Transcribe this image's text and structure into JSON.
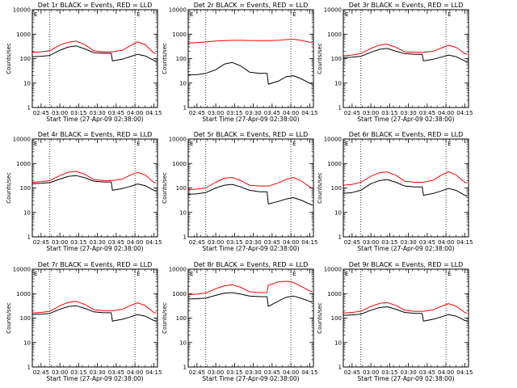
{
  "page": {
    "background": "#ffffff"
  },
  "style": {
    "events_color": "#000000",
    "lld_color": "#ff0000",
    "marker_line_style": "dotted"
  },
  "common": {
    "xlabel": "Start Time (27-Apr-09 02:38:00)",
    "ylabel": "Counts/sec",
    "xticks": [
      "02:45",
      "03:00",
      "03:15",
      "03:30",
      "03:45",
      "04:00",
      "04:15"
    ],
    "yticks": [
      "1",
      "10",
      "100",
      "1000",
      "10000"
    ],
    "marker_label": "E",
    "markers": [
      "02:52",
      "04:00"
    ]
  },
  "chart_data": [
    {
      "type": "line",
      "title": "Det 1r BLACK = Events, RED = LLD",
      "xlabel": "Start Time (27-Apr-09 02:38:00)",
      "ylabel": "Counts/sec",
      "xlim": [
        "02:38",
        "04:18"
      ],
      "ylim": [
        1,
        10000
      ],
      "yscale": "log",
      "grid": false,
      "x": [
        "02:38",
        "02:45",
        "02:52",
        "03:00",
        "03:07",
        "03:13",
        "03:20",
        "03:27",
        "03:35",
        "03:41",
        "03:42",
        "03:50",
        "03:56",
        "04:02",
        "04:08",
        "04:15",
        "04:17"
      ],
      "series": [
        {
          "name": "Events",
          "values": [
            120,
            125,
            135,
            220,
            300,
            330,
            250,
            175,
            165,
            165,
            80,
            95,
            120,
            150,
            130,
            85,
            75
          ]
        },
        {
          "name": "LLD",
          "values": [
            180,
            190,
            210,
            360,
            470,
            520,
            370,
            210,
            190,
            190,
            190,
            220,
            330,
            480,
            380,
            170,
            160
          ]
        }
      ]
    },
    {
      "type": "line",
      "title": "Det 2r BLACK = Events, RED = LLD",
      "xlabel": "Start Time (27-Apr-09 02:38:00)",
      "ylabel": "Counts/sec",
      "xlim": [
        "02:38",
        "04:18"
      ],
      "ylim": [
        1,
        10000
      ],
      "yscale": "log",
      "grid": false,
      "x": [
        "02:38",
        "02:45",
        "02:52",
        "03:00",
        "03:07",
        "03:13",
        "03:20",
        "03:27",
        "03:35",
        "03:41",
        "03:42",
        "03:50",
        "03:56",
        "04:02",
        "04:08",
        "04:15",
        "04:17"
      ],
      "series": [
        {
          "name": "Events",
          "values": [
            22,
            22,
            25,
            35,
            60,
            70,
            50,
            28,
            25,
            25,
            9,
            12,
            18,
            20,
            15,
            10,
            9
          ]
        },
        {
          "name": "LLD",
          "values": [
            430,
            450,
            480,
            520,
            540,
            560,
            560,
            550,
            540,
            540,
            540,
            560,
            600,
            620,
            560,
            470,
            460
          ]
        }
      ]
    },
    {
      "type": "line",
      "title": "Det 3r BLACK = Events, RED = LLD",
      "xlabel": "Start Time (27-Apr-09 02:38:00)",
      "ylabel": "Counts/sec",
      "xlim": [
        "02:38",
        "04:18"
      ],
      "ylim": [
        1,
        10000
      ],
      "yscale": "log",
      "grid": false,
      "x": [
        "02:38",
        "02:45",
        "02:52",
        "03:00",
        "03:07",
        "03:13",
        "03:20",
        "03:27",
        "03:35",
        "03:41",
        "03:42",
        "03:50",
        "03:56",
        "04:02",
        "04:08",
        "04:15",
        "04:17"
      ],
      "series": [
        {
          "name": "Events",
          "values": [
            110,
            115,
            125,
            180,
            240,
            260,
            200,
            160,
            150,
            150,
            80,
            95,
            115,
            140,
            120,
            80,
            70
          ]
        },
        {
          "name": "LLD",
          "values": [
            130,
            140,
            160,
            260,
            360,
            390,
            290,
            190,
            180,
            180,
            180,
            200,
            270,
            350,
            290,
            160,
            150
          ]
        }
      ]
    },
    {
      "type": "line",
      "title": "Det 4r BLACK = Events, RED = LLD",
      "xlabel": "Start Time (27-Apr-09 02:38:00)",
      "ylabel": "Counts/sec",
      "xlim": [
        "02:38",
        "04:18"
      ],
      "ylim": [
        1,
        10000
      ],
      "yscale": "log",
      "grid": false,
      "x": [
        "02:38",
        "02:45",
        "02:52",
        "03:00",
        "03:07",
        "03:13",
        "03:20",
        "03:27",
        "03:35",
        "03:41",
        "03:42",
        "03:50",
        "03:56",
        "04:02",
        "04:08",
        "04:15",
        "04:17"
      ],
      "series": [
        {
          "name": "Events",
          "values": [
            150,
            155,
            165,
            230,
            300,
            320,
            260,
            190,
            175,
            175,
            80,
            95,
            115,
            145,
            125,
            80,
            75
          ]
        },
        {
          "name": "LLD",
          "values": [
            170,
            180,
            200,
            320,
            440,
            480,
            360,
            220,
            200,
            200,
            200,
            230,
            330,
            430,
            340,
            170,
            160
          ]
        }
      ]
    },
    {
      "type": "line",
      "title": "Det 5r BLACK = Events, RED = LLD",
      "xlabel": "Start Time (27-Apr-09 02:38:00)",
      "ylabel": "Counts/sec",
      "xlim": [
        "02:38",
        "04:18"
      ],
      "ylim": [
        1,
        10000
      ],
      "yscale": "log",
      "grid": false,
      "x": [
        "02:38",
        "02:45",
        "02:52",
        "03:00",
        "03:07",
        "03:13",
        "03:20",
        "03:27",
        "03:35",
        "03:41",
        "03:42",
        "03:50",
        "03:56",
        "04:02",
        "04:08",
        "04:15",
        "04:17"
      ],
      "series": [
        {
          "name": "Events",
          "values": [
            55,
            58,
            65,
            100,
            130,
            140,
            110,
            80,
            70,
            70,
            22,
            28,
            35,
            40,
            32,
            22,
            20
          ]
        },
        {
          "name": "LLD",
          "values": [
            85,
            90,
            100,
            170,
            250,
            270,
            200,
            130,
            120,
            120,
            120,
            160,
            220,
            270,
            200,
            110,
            100
          ]
        }
      ]
    },
    {
      "type": "line",
      "title": "Det 6r BLACK = Events, RED = LLD",
      "xlabel": "Start Time (27-Apr-09 02:38:00)",
      "ylabel": "Counts/sec",
      "xlim": [
        "02:38",
        "04:18"
      ],
      "ylim": [
        1,
        10000
      ],
      "yscale": "log",
      "grid": false,
      "x": [
        "02:38",
        "02:45",
        "02:52",
        "03:00",
        "03:07",
        "03:13",
        "03:20",
        "03:27",
        "03:35",
        "03:41",
        "03:42",
        "03:50",
        "03:56",
        "04:02",
        "04:08",
        "04:15",
        "04:17"
      ],
      "series": [
        {
          "name": "Events",
          "values": [
            60,
            65,
            80,
            150,
            200,
            220,
            170,
            120,
            110,
            110,
            50,
            60,
            75,
            95,
            80,
            50,
            45
          ]
        },
        {
          "name": "LLD",
          "values": [
            130,
            140,
            170,
            300,
            420,
            450,
            330,
            190,
            170,
            170,
            170,
            210,
            330,
            460,
            340,
            170,
            160
          ]
        }
      ]
    },
    {
      "type": "line",
      "title": "Det 7r BLACK = Events, RED = LLD",
      "xlabel": "Start Time (27-Apr-09 02:38:00)",
      "ylabel": "Counts/sec",
      "xlim": [
        "02:38",
        "04:18"
      ],
      "ylim": [
        1,
        10000
      ],
      "yscale": "log",
      "grid": false,
      "x": [
        "02:38",
        "02:45",
        "02:52",
        "03:00",
        "03:07",
        "03:13",
        "03:20",
        "03:27",
        "03:35",
        "03:41",
        "03:42",
        "03:50",
        "03:56",
        "04:02",
        "04:08",
        "04:15",
        "04:17"
      ],
      "series": [
        {
          "name": "Events",
          "values": [
            140,
            145,
            155,
            230,
            300,
            320,
            250,
            180,
            165,
            165,
            75,
            90,
            110,
            140,
            120,
            80,
            75
          ]
        },
        {
          "name": "LLD",
          "values": [
            160,
            170,
            190,
            320,
            440,
            480,
            360,
            220,
            200,
            200,
            200,
            230,
            320,
            420,
            330,
            170,
            160
          ]
        }
      ]
    },
    {
      "type": "line",
      "title": "Det 8r BLACK = Events, RED = LLD",
      "xlabel": "Start Time (27-Apr-09 02:38:00)",
      "ylabel": "Counts/sec",
      "xlim": [
        "02:38",
        "04:18"
      ],
      "ylim": [
        1,
        10000
      ],
      "yscale": "log",
      "grid": false,
      "x": [
        "02:38",
        "02:45",
        "02:52",
        "03:00",
        "03:07",
        "03:13",
        "03:20",
        "03:27",
        "03:35",
        "03:41",
        "03:42",
        "03:50",
        "03:56",
        "04:02",
        "04:08",
        "04:15",
        "04:17"
      ],
      "series": [
        {
          "name": "Events",
          "values": [
            600,
            620,
            650,
            850,
            1050,
            1100,
            950,
            800,
            750,
            750,
            300,
            500,
            700,
            800,
            650,
            480,
            440
          ]
        },
        {
          "name": "LLD",
          "values": [
            900,
            950,
            1050,
            1600,
            2100,
            2300,
            1800,
            1200,
            1100,
            1100,
            2200,
            3000,
            3200,
            2900,
            2000,
            1300,
            1200
          ]
        }
      ]
    },
    {
      "type": "line",
      "title": "Det 9r BLACK = Events, RED = LLD",
      "xlabel": "Start Time (27-Apr-09 02:38:00)",
      "ylabel": "Counts/sec",
      "xlim": [
        "02:38",
        "04:18"
      ],
      "ylim": [
        1,
        10000
      ],
      "yscale": "log",
      "grid": false,
      "x": [
        "02:38",
        "02:45",
        "02:52",
        "03:00",
        "03:07",
        "03:13",
        "03:20",
        "03:27",
        "03:35",
        "03:41",
        "03:42",
        "03:50",
        "03:56",
        "04:02",
        "04:08",
        "04:15",
        "04:17"
      ],
      "series": [
        {
          "name": "Events",
          "values": [
            130,
            135,
            145,
            210,
            270,
            290,
            230,
            170,
            155,
            155,
            75,
            90,
            110,
            140,
            120,
            80,
            75
          ]
        },
        {
          "name": "LLD",
          "values": [
            160,
            170,
            190,
            300,
            400,
            430,
            330,
            210,
            190,
            190,
            190,
            220,
            300,
            390,
            310,
            170,
            160
          ]
        }
      ]
    }
  ]
}
